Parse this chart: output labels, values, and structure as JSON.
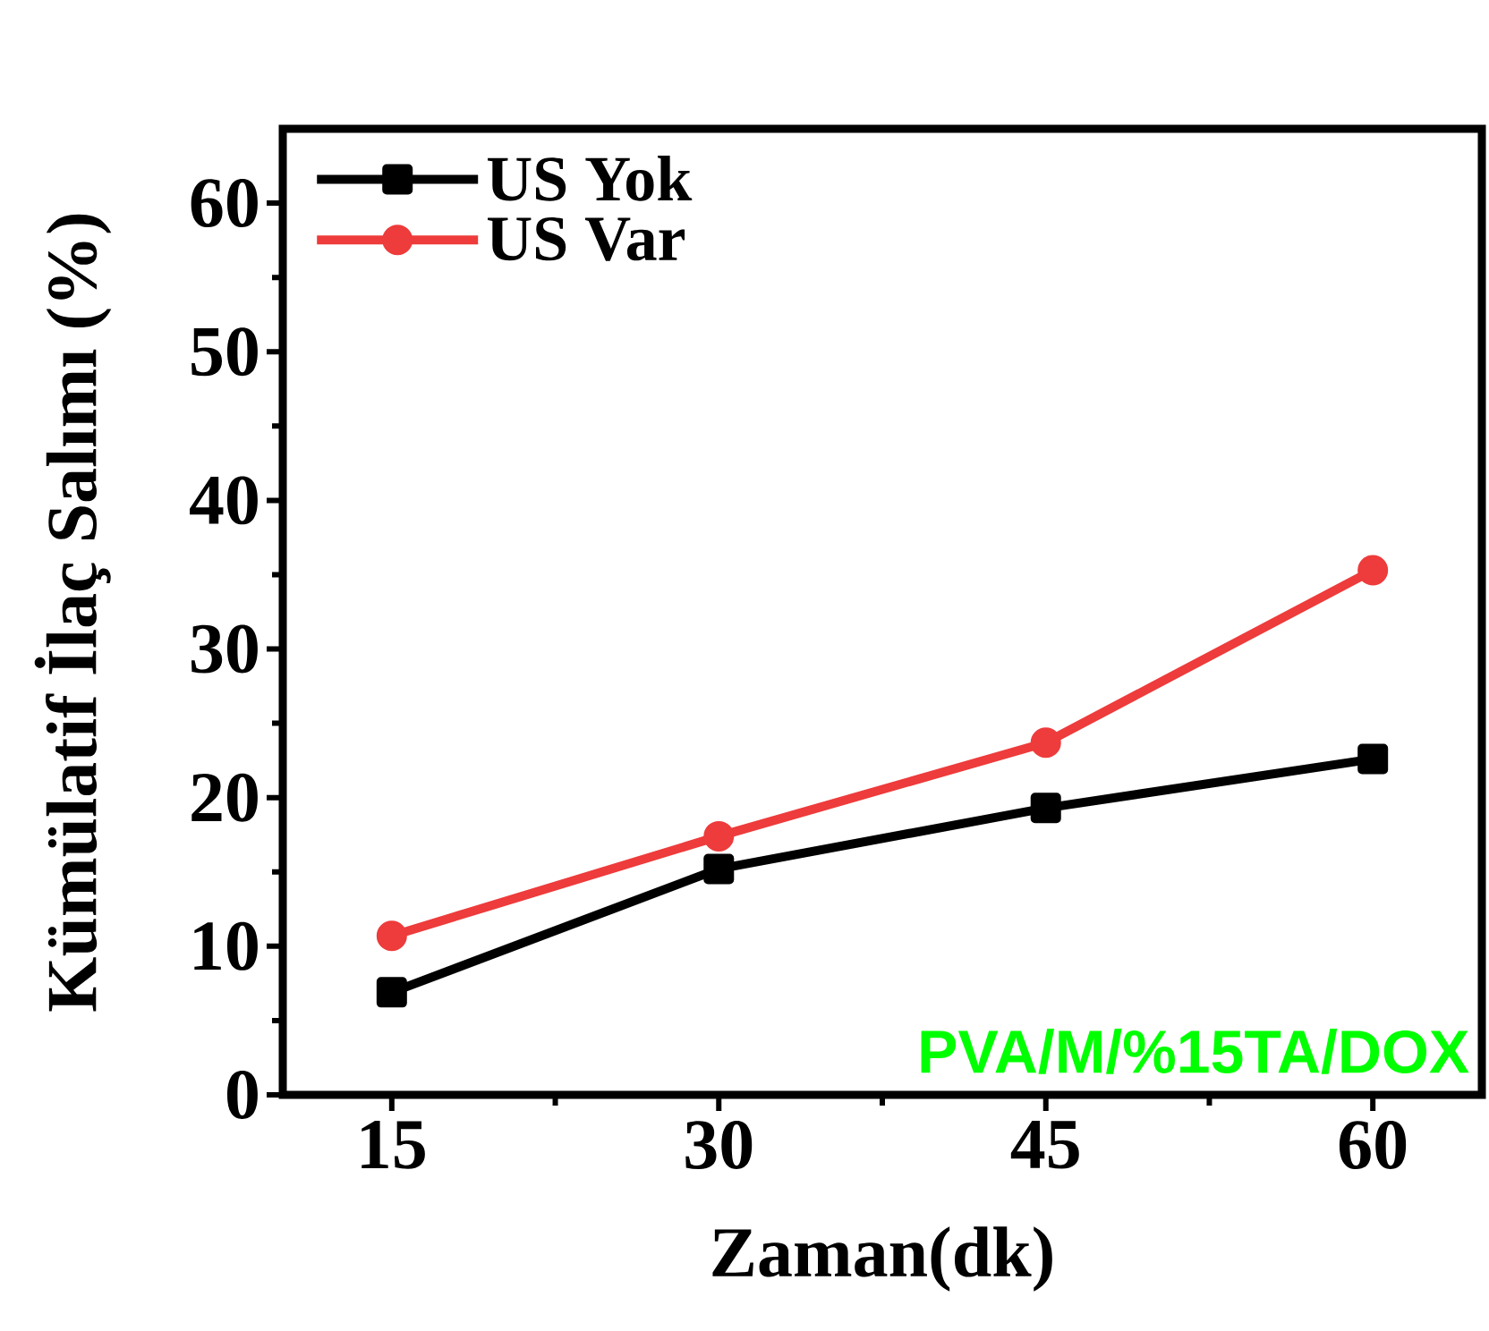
{
  "chart_data": {
    "type": "line",
    "xlabel": "Zaman(dk)",
    "ylabel": "Kümülatif İlaç Salımı (%)",
    "x": [
      15,
      30,
      45,
      60
    ],
    "series": [
      {
        "name": "US Yok",
        "color": "#000000",
        "marker": "square",
        "values": [
          6.9,
          15.2,
          19.3,
          22.6
        ]
      },
      {
        "name": "US Var",
        "color": "#ee3b3b",
        "marker": "circle",
        "values": [
          10.7,
          17.4,
          23.7,
          35.3
        ]
      }
    ],
    "xlim": [
      10,
      65
    ],
    "ylim": [
      0,
      65
    ],
    "xticks": [
      15,
      30,
      45,
      60
    ],
    "yticks": [
      0,
      10,
      20,
      30,
      40,
      50,
      60
    ],
    "legend": "top left",
    "grid": false,
    "line_style": "solid",
    "annotations": [
      "PVA/M/%15TA/DOX"
    ]
  }
}
